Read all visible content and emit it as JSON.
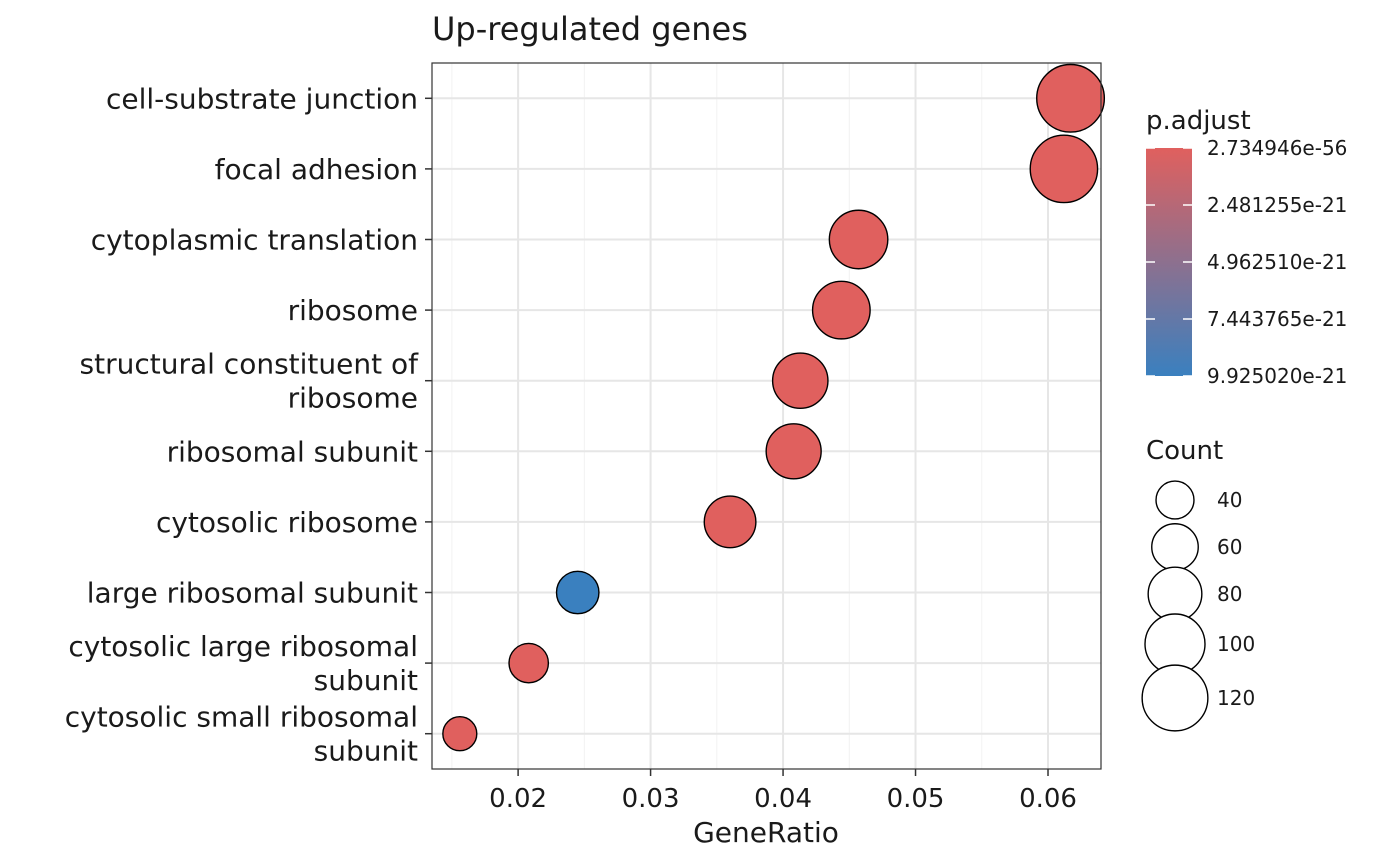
{
  "chart_data": {
    "type": "scatter",
    "title": "Up-regulated genes",
    "xlabel": "GeneRatio",
    "ylabel": "",
    "xlim": [
      0.0135,
      0.064
    ],
    "x_ticks": [
      0.02,
      0.03,
      0.04,
      0.05,
      0.06
    ],
    "x_tick_labels": [
      "0.02",
      "0.03",
      "0.04",
      "0.05",
      "0.06"
    ],
    "grid": true,
    "categories": [
      [
        "cell-substrate junction"
      ],
      [
        "focal adhesion"
      ],
      [
        "cytoplasmic translation"
      ],
      [
        "ribosome"
      ],
      [
        "structural constituent of",
        "ribosome"
      ],
      [
        "ribosomal subunit"
      ],
      [
        "cytosolic ribosome"
      ],
      [
        "large ribosomal subunit"
      ],
      [
        "cytosolic large ribosomal",
        "subunit"
      ],
      [
        "cytosolic small ribosomal",
        "subunit"
      ]
    ],
    "points": [
      {
        "x": 0.0617,
        "count": 127,
        "p_adjust": 2.734946e-56
      },
      {
        "x": 0.0612,
        "count": 126,
        "p_adjust": 1e-54
      },
      {
        "x": 0.0457,
        "count": 95,
        "p_adjust": 1e-40
      },
      {
        "x": 0.0444,
        "count": 92,
        "p_adjust": 1e-38
      },
      {
        "x": 0.0413,
        "count": 85,
        "p_adjust": 1e-36
      },
      {
        "x": 0.0408,
        "count": 84,
        "p_adjust": 1e-35
      },
      {
        "x": 0.036,
        "count": 74,
        "p_adjust": 1e-30
      },
      {
        "x": 0.0245,
        "count": 50,
        "p_adjust": 9.92502e-21
      },
      {
        "x": 0.0208,
        "count": 43,
        "p_adjust": 1e-24
      },
      {
        "x": 0.0156,
        "count": 32,
        "p_adjust": 1e-26
      }
    ],
    "color_legend": {
      "title": "p.adjust",
      "labels": [
        "2.734946e-56",
        "2.481255e-21",
        "4.962510e-21",
        "7.443765e-21",
        "9.925020e-21"
      ],
      "low_color": "#e0605e",
      "high_color": "#3a80bf"
    },
    "size_legend": {
      "title": "Count",
      "values": [
        40,
        60,
        80,
        100,
        120
      ],
      "labels": [
        "40",
        "60",
        "80",
        "100",
        "120"
      ]
    }
  }
}
